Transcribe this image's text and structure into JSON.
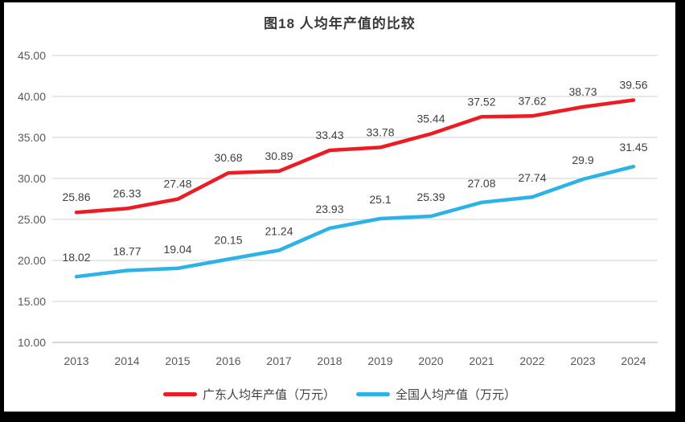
{
  "frame": {
    "border_color": "#000000",
    "background": "#ffffff"
  },
  "chart_data": {
    "type": "line",
    "title": "图18 人均年产值的比较",
    "categories": [
      "2013",
      "2014",
      "2015",
      "2016",
      "2017",
      "2018",
      "2019",
      "2020",
      "2021",
      "2022",
      "2023",
      "2024"
    ],
    "series": [
      {
        "name": "广东人均年产值（万元）",
        "color": "#ec1c24",
        "values": [
          25.86,
          26.33,
          27.48,
          30.68,
          30.89,
          33.43,
          33.78,
          35.44,
          37.52,
          37.62,
          38.73,
          39.56
        ],
        "labels": [
          "25.86",
          "26.33",
          "27.48",
          "30.68",
          "30.89",
          "33.43",
          "33.78",
          "35.44",
          "37.52",
          "37.62",
          "38.73",
          "39.56"
        ]
      },
      {
        "name": "全国人均产值（万元）",
        "color": "#2bb3e8",
        "values": [
          18.02,
          18.77,
          19.04,
          20.15,
          21.24,
          23.93,
          25.1,
          25.39,
          27.08,
          27.74,
          29.9,
          31.45
        ],
        "labels": [
          "18.02",
          "18.77",
          "19.04",
          "20.15",
          "21.24",
          "23.93",
          "25.1",
          "25.39",
          "27.08",
          "27.74",
          "29.9",
          "31.45"
        ]
      }
    ],
    "y_axis": {
      "min": 10,
      "max": 45,
      "step": 5,
      "tick_labels": [
        "10.00",
        "15.00",
        "20.00",
        "25.00",
        "30.00",
        "35.00",
        "40.00",
        "45.00"
      ]
    },
    "x_axis": {
      "tick_labels": [
        "2013",
        "2014",
        "2015",
        "2016",
        "2017",
        "2018",
        "2019",
        "2020",
        "2021",
        "2022",
        "2023",
        "2024"
      ]
    },
    "grid": true,
    "grid_color": "#d9d9d9",
    "axis_line_color": "#bfbfbf",
    "legend_position": "bottom"
  }
}
